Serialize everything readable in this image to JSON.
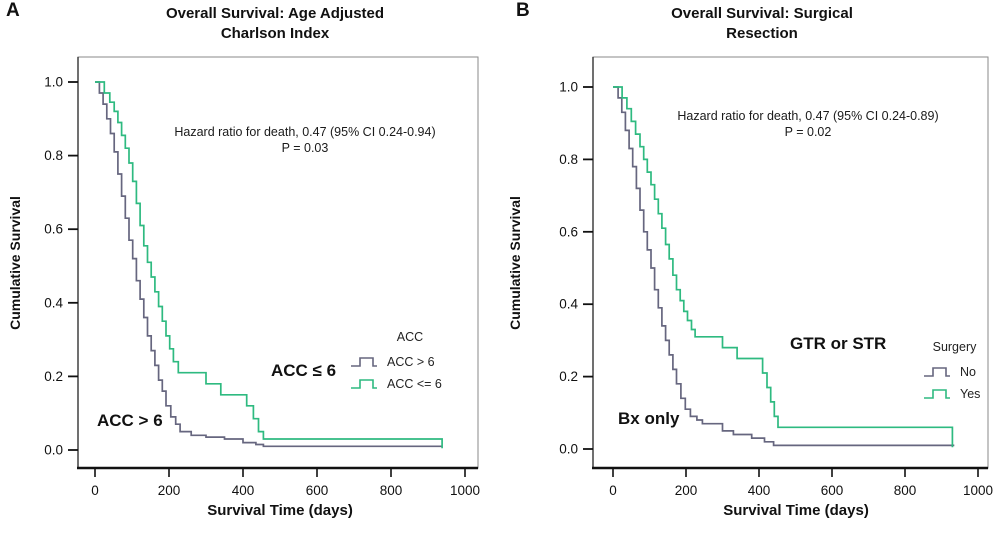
{
  "figure": {
    "background": "#ffffff",
    "accent_green": "#2eba80",
    "accent_dark": "#66667f"
  },
  "chart_data": [
    {
      "type": "line",
      "subtype": "kaplan-meier-step",
      "panel_label": "A",
      "title": "Overall Survival: Age Adjusted Charlson Index",
      "title_lines": [
        "Overall Survival: Age Adjusted",
        "Charlson Index"
      ],
      "annotation_lines": [
        "Hazard ratio for death, 0.47 (95% CI 0.24-0.94)",
        "P = 0.03"
      ],
      "xlabel": "Survival Time (days)",
      "ylabel": "Cumulative Survival",
      "xlim": [
        0,
        1000
      ],
      "ylim": [
        0,
        1
      ],
      "xticks": [
        0,
        200,
        400,
        600,
        800,
        1000
      ],
      "xtick_labels": [
        "0",
        "200",
        "400",
        "600",
        "800",
        "1000"
      ],
      "yticks": [
        0,
        0.2,
        0.4,
        0.6,
        0.8,
        1.0
      ],
      "ytick_labels": [
        "0.0",
        "0.2",
        "0.4",
        "0.6",
        "0.8",
        "1.0"
      ],
      "grid": false,
      "legend": {
        "title": "ACC",
        "position": "right-middle"
      },
      "curve_labels": [
        {
          "text": "ACC > 6"
        },
        {
          "text": "ACC ≤ 6"
        }
      ],
      "series": [
        {
          "name": "ACC > 6",
          "color": "#66667f",
          "x": [
            0,
            12,
            22,
            32,
            42,
            52,
            62,
            72,
            82,
            92,
            102,
            112,
            122,
            132,
            142,
            152,
            162,
            172,
            182,
            192,
            205,
            218,
            230,
            260,
            300,
            350,
            400,
            435,
            455,
            938
          ],
          "y": [
            1.0,
            0.97,
            0.94,
            0.9,
            0.86,
            0.81,
            0.75,
            0.69,
            0.63,
            0.57,
            0.52,
            0.46,
            0.41,
            0.36,
            0.31,
            0.27,
            0.23,
            0.19,
            0.16,
            0.12,
            0.09,
            0.07,
            0.05,
            0.04,
            0.035,
            0.03,
            0.02,
            0.015,
            0.01,
            0.01
          ]
        },
        {
          "name": "ACC <= 6",
          "color": "#2eba80",
          "x": [
            0,
            25,
            40,
            52,
            62,
            72,
            82,
            92,
            102,
            112,
            122,
            132,
            142,
            152,
            162,
            172,
            182,
            192,
            202,
            212,
            225,
            300,
            340,
            410,
            428,
            442,
            455,
            938
          ],
          "y": [
            1.0,
            0.97,
            0.945,
            0.92,
            0.89,
            0.855,
            0.82,
            0.78,
            0.73,
            0.67,
            0.61,
            0.555,
            0.51,
            0.47,
            0.43,
            0.39,
            0.35,
            0.31,
            0.275,
            0.24,
            0.21,
            0.18,
            0.15,
            0.12,
            0.085,
            0.05,
            0.03,
            0.005
          ]
        }
      ]
    },
    {
      "type": "line",
      "subtype": "kaplan-meier-step",
      "panel_label": "B",
      "title": "Overall Survival: Surgical Resection",
      "title_lines": [
        "Overall Survival: Surgical",
        "Resection"
      ],
      "annotation_lines": [
        "Hazard ratio for death, 0.47 (95% CI 0.24-0.89)",
        "P = 0.02"
      ],
      "xlabel": "Survival Time (days)",
      "ylabel": "Cumulative Survival",
      "xlim": [
        0,
        1000
      ],
      "ylim": [
        0,
        1
      ],
      "xticks": [
        0,
        200,
        400,
        600,
        800,
        1000
      ],
      "xtick_labels": [
        "0",
        "200",
        "400",
        "600",
        "800",
        "1000"
      ],
      "yticks": [
        0,
        0.2,
        0.4,
        0.6,
        0.8,
        1.0
      ],
      "ytick_labels": [
        "0.0",
        "0.2",
        "0.4",
        "0.6",
        "0.8",
        "1.0"
      ],
      "grid": false,
      "legend": {
        "title": "Surgery",
        "position": "right-middle"
      },
      "curve_labels": [
        {
          "text": "Bx only"
        },
        {
          "text": "GTR or STR"
        }
      ],
      "series": [
        {
          "name": "No",
          "color": "#66667f",
          "x": [
            0,
            14,
            24,
            34,
            44,
            54,
            64,
            74,
            84,
            94,
            104,
            114,
            124,
            134,
            144,
            154,
            164,
            174,
            186,
            198,
            212,
            230,
            245,
            300,
            330,
            380,
            415,
            440,
            935
          ],
          "y": [
            1.0,
            0.97,
            0.93,
            0.88,
            0.83,
            0.78,
            0.72,
            0.66,
            0.6,
            0.55,
            0.5,
            0.44,
            0.39,
            0.34,
            0.3,
            0.26,
            0.22,
            0.18,
            0.14,
            0.11,
            0.09,
            0.08,
            0.07,
            0.05,
            0.04,
            0.03,
            0.02,
            0.01,
            0.01
          ]
        },
        {
          "name": "Yes",
          "color": "#2eba80",
          "x": [
            0,
            25,
            38,
            50,
            62,
            74,
            84,
            94,
            104,
            114,
            124,
            134,
            144,
            154,
            164,
            174,
            184,
            194,
            204,
            215,
            225,
            300,
            340,
            410,
            422,
            432,
            442,
            452,
            930
          ],
          "y": [
            1.0,
            0.97,
            0.94,
            0.905,
            0.87,
            0.835,
            0.8,
            0.765,
            0.73,
            0.69,
            0.65,
            0.61,
            0.565,
            0.525,
            0.48,
            0.44,
            0.41,
            0.38,
            0.355,
            0.33,
            0.31,
            0.28,
            0.25,
            0.21,
            0.17,
            0.13,
            0.09,
            0.06,
            0.005
          ]
        }
      ]
    }
  ]
}
